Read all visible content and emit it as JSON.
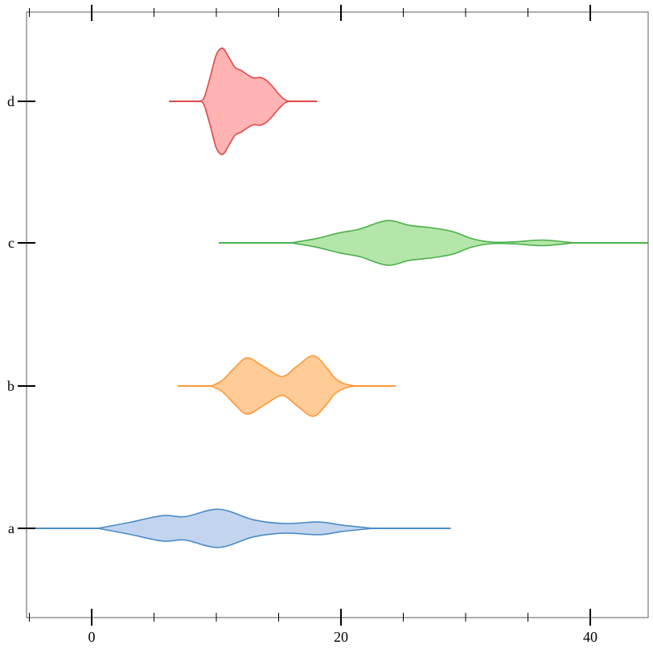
{
  "chart_data": {
    "type": "violin",
    "orientation": "horizontal",
    "title": "",
    "xlabel": "",
    "ylabel": "",
    "xlim": [
      -5.2,
      44.6
    ],
    "x_major_ticks": [
      0,
      20,
      40
    ],
    "x_tick_labels": [
      "0",
      "20",
      "40"
    ],
    "x_minor_ticks": [
      -5,
      5,
      10,
      15,
      25,
      30,
      35
    ],
    "grid": false,
    "categories": [
      "a",
      "b",
      "c",
      "d"
    ],
    "series": [
      {
        "category": "a",
        "stroke": "#4a8cc8",
        "fill": "#c3d5ee",
        "range": [
          -6,
          28.8
        ],
        "density_relative": [
          [
            0.5,
            0
          ],
          [
            3.0,
            0.11
          ],
          [
            5.7,
            0.24
          ],
          [
            7.5,
            0.22
          ],
          [
            10.2,
            0.36
          ],
          [
            13.0,
            0.16
          ],
          [
            15.5,
            0.09
          ],
          [
            18.2,
            0.12
          ],
          [
            20.1,
            0.06
          ],
          [
            22.6,
            0
          ]
        ]
      },
      {
        "category": "b",
        "stroke": "#ff9838",
        "fill": "#ffcb96",
        "range": [
          6.9,
          24.4
        ],
        "density_relative": [
          [
            9.6,
            0
          ],
          [
            10.5,
            0.11
          ],
          [
            11.5,
            0.35
          ],
          [
            12.5,
            0.53
          ],
          [
            13.9,
            0.35
          ],
          [
            15.3,
            0.18
          ],
          [
            16.5,
            0.38
          ],
          [
            17.8,
            0.57
          ],
          [
            18.9,
            0.33
          ],
          [
            19.5,
            0.15
          ],
          [
            20.3,
            0.04
          ],
          [
            21.2,
            0
          ]
        ]
      },
      {
        "category": "c",
        "stroke": "#4cb04c",
        "fill": "#b3e6a8",
        "range": [
          10.2,
          46
        ],
        "density_relative": [
          [
            16.0,
            0
          ],
          [
            18.0,
            0.08
          ],
          [
            19.9,
            0.19
          ],
          [
            21.5,
            0.26
          ],
          [
            23.7,
            0.42
          ],
          [
            25.5,
            0.33
          ],
          [
            27.4,
            0.28
          ],
          [
            29.0,
            0.21
          ],
          [
            30.5,
            0.08
          ],
          [
            32.1,
            0.015
          ],
          [
            34.0,
            0.02
          ],
          [
            36.2,
            0.053
          ],
          [
            38.7,
            0
          ]
        ]
      },
      {
        "category": "d",
        "stroke": "#e0484a",
        "fill": "#ffb3b3",
        "range": [
          6.2,
          18.1
        ],
        "density_relative": [
          [
            8.6,
            0
          ],
          [
            9.0,
            0.06
          ],
          [
            9.5,
            0.45
          ],
          [
            10.0,
            0.88
          ],
          [
            10.5,
            1.0
          ],
          [
            11.0,
            0.83
          ],
          [
            11.5,
            0.64
          ],
          [
            12.0,
            0.58
          ],
          [
            12.5,
            0.5
          ],
          [
            13.0,
            0.44
          ],
          [
            13.5,
            0.45
          ],
          [
            14.0,
            0.4
          ],
          [
            14.5,
            0.28
          ],
          [
            15.0,
            0.14
          ],
          [
            15.5,
            0.03
          ],
          [
            15.9,
            0
          ]
        ]
      }
    ]
  }
}
